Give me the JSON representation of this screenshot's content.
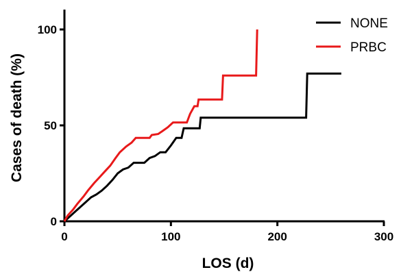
{
  "chart_data": {
    "type": "line",
    "title": "",
    "xlabel": "LOS (d)",
    "ylabel": "Cases of death (%)",
    "xlim": [
      0,
      300
    ],
    "ylim": [
      0,
      100
    ],
    "x_ticks": [
      0,
      100,
      200,
      300
    ],
    "y_ticks": [
      0,
      50,
      100
    ],
    "x_tick_labels": [
      "0",
      "100",
      "200",
      "300"
    ],
    "y_tick_labels": [
      "0",
      "50",
      "100"
    ],
    "grid": false,
    "legend": "top-right",
    "series": [
      {
        "name": "NONE",
        "color": "#000000",
        "points": [
          [
            0,
            0
          ],
          [
            5,
            2.5
          ],
          [
            10,
            5
          ],
          [
            15,
            7.5
          ],
          [
            20,
            10
          ],
          [
            25,
            12.5
          ],
          [
            30,
            14
          ],
          [
            35,
            16
          ],
          [
            40,
            18.5
          ],
          [
            45,
            21.5
          ],
          [
            50,
            25
          ],
          [
            55,
            27
          ],
          [
            60,
            28
          ],
          [
            65,
            30.5
          ],
          [
            75,
            30.5
          ],
          [
            80,
            33
          ],
          [
            85,
            34
          ],
          [
            90,
            36
          ],
          [
            95,
            36
          ],
          [
            100,
            39.5
          ],
          [
            105,
            43.5
          ],
          [
            110,
            43.5
          ],
          [
            112,
            48.5
          ],
          [
            127,
            48.5
          ],
          [
            128,
            54
          ],
          [
            227,
            54
          ],
          [
            228,
            77
          ],
          [
            260,
            77
          ]
        ]
      },
      {
        "name": "PRBC",
        "color": "#e8191a",
        "points": [
          [
            0,
            0
          ],
          [
            3,
            3
          ],
          [
            8,
            6
          ],
          [
            12,
            9
          ],
          [
            18,
            13
          ],
          [
            22,
            16
          ],
          [
            28,
            20
          ],
          [
            33,
            23
          ],
          [
            38,
            26
          ],
          [
            43,
            29
          ],
          [
            48,
            33
          ],
          [
            52,
            36
          ],
          [
            58,
            39
          ],
          [
            63,
            41
          ],
          [
            67,
            43.5
          ],
          [
            80,
            43.5
          ],
          [
            82,
            45
          ],
          [
            88,
            45.5
          ],
          [
            92,
            47
          ],
          [
            97,
            49
          ],
          [
            102,
            51.5
          ],
          [
            115,
            51.5
          ],
          [
            118,
            56
          ],
          [
            122,
            60
          ],
          [
            125,
            60
          ],
          [
            126,
            63.5
          ],
          [
            148,
            63.5
          ],
          [
            149,
            76
          ],
          [
            180,
            76
          ],
          [
            181,
            100
          ]
        ]
      }
    ]
  }
}
